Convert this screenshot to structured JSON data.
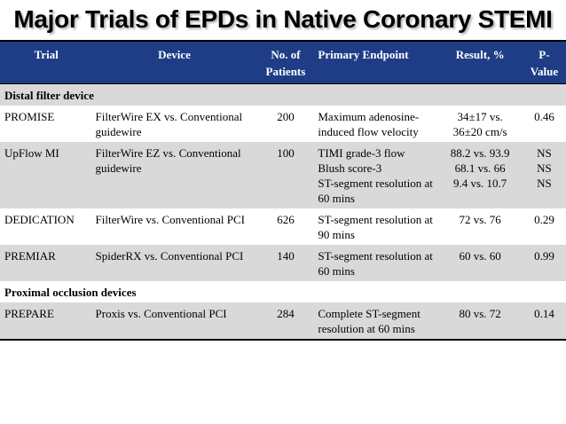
{
  "title": "Major Trials of EPDs in Native Coronary STEMI",
  "headers": {
    "trial": "Trial",
    "device": "Device",
    "patients": [
      "No. of",
      "Patients"
    ],
    "endpoint": "Primary Endpoint",
    "result": "Result, %",
    "pvalue": [
      "P-",
      "Value"
    ]
  },
  "sections": {
    "distal": "Distal filter device",
    "proximal": "Proximal occlusion devices"
  },
  "rows": {
    "promise": {
      "trial": "PROMISE",
      "device": "FilterWire EX vs. Conventional guidewire",
      "patients": "200",
      "endpoint": "Maximum adenosine-induced flow velocity",
      "result": [
        "34±17 vs.",
        "36±20 cm/s"
      ],
      "p": [
        "0.46"
      ]
    },
    "upflow": {
      "trial": "UpFlow MI",
      "device": "FilterWire EZ vs. Conventional guidewire",
      "patients": "100",
      "endpoint": [
        "TIMI grade-3 flow",
        "Blush score-3",
        "ST-segment resolution at 60 mins"
      ],
      "result": [
        "88.2 vs. 93.9",
        "68.1 vs. 66",
        "9.4 vs. 10.7"
      ],
      "p": [
        "NS",
        "NS",
        "NS"
      ]
    },
    "dedication": {
      "trial": "DEDICATION",
      "device": "FilterWire vs. Conventional PCI",
      "patients": "626",
      "endpoint": "ST-segment resolution at 90 mins",
      "result": [
        "72 vs. 76"
      ],
      "p": [
        "0.29"
      ]
    },
    "premiar": {
      "trial": "PREMIAR",
      "device": "SpiderRX vs. Conventional PCI",
      "patients": "140",
      "endpoint": "ST-segment resolution at 60 mins",
      "result": [
        "60 vs. 60"
      ],
      "p": [
        "0.99"
      ]
    },
    "prepare": {
      "trial": "PREPARE",
      "device": "Proxis vs. Conventional PCI",
      "patients": "284",
      "endpoint": "Complete ST-segment resolution at 60 mins",
      "result": [
        "80 vs. 72"
      ],
      "p": [
        "0.14"
      ]
    }
  },
  "colors": {
    "header_bg": "#1f3d86",
    "alt_row_bg": "#d9d9d9"
  }
}
